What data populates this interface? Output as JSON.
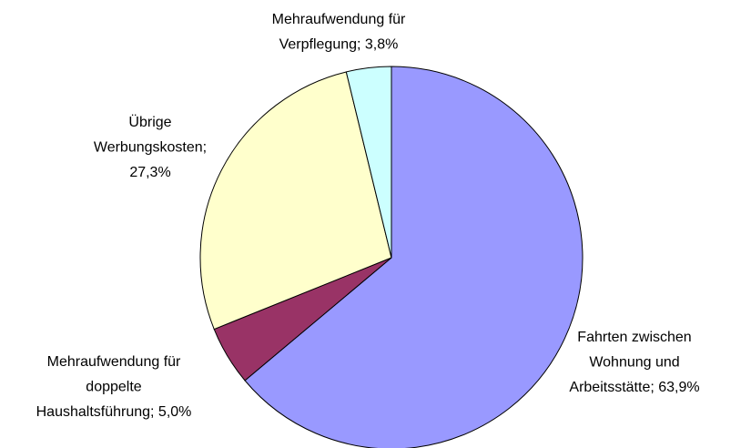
{
  "chart_data": {
    "type": "pie",
    "values": [
      63.9,
      5.0,
      27.3,
      3.8
    ],
    "value_labels": [
      "Fahrten zwischen Wohnung und Arbeitsstätte; 63,9%",
      "Mehraufwendung für doppelte Haushaltsführung; 5,0%",
      "Übrige Werbungskosten; 27,3%",
      "Mehraufwendung für Verpflegung; 3,8%"
    ],
    "colors": [
      "#9999ff",
      "#993366",
      "#ffffcc",
      "#ccffff"
    ]
  }
}
